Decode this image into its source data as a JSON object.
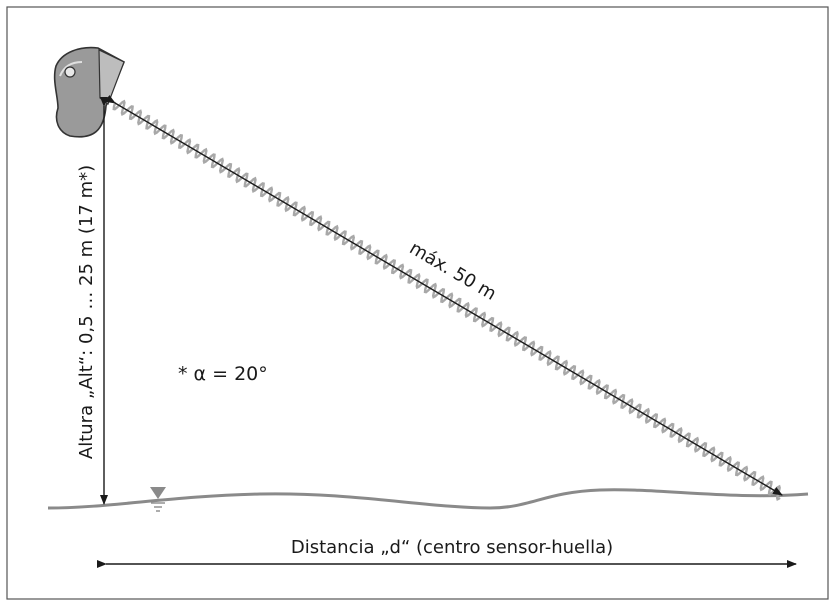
{
  "labels": {
    "slant_range": "máx. 50 m",
    "height": "Altura „Alt“: 0,5 … 25 m (17 m*)",
    "footnote": "* α = 20°",
    "distance": "Distancia „d“ (centro sensor-huella)"
  },
  "colors": {
    "frame": "#555555",
    "ground": "#8a8a8a",
    "wave": "#a8a8a8",
    "arrow": "#1a1a1a",
    "sensor_fill": "#9a9a9a",
    "water_marker": "#8a8a8a"
  },
  "icons": {
    "sensor": "radar-sensor-icon",
    "water_level": "water-level-icon"
  }
}
